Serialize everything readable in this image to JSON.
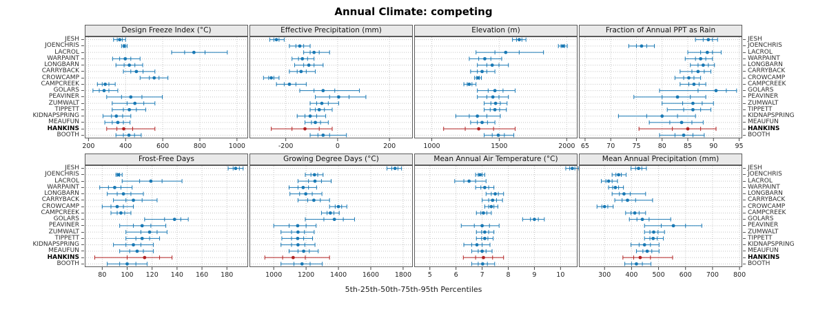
{
  "title": "Annual Climate: competing",
  "caption": "5th-25th-50th-75th-95th Percentiles",
  "sites": [
    "JESH",
    "JOENCHRIS",
    "LACROL",
    "WARPAINT",
    "LONGBARN",
    "CARRYBACK",
    "CROWCAMP",
    "CAMPCREEK",
    "GOLARS",
    "PEAVINER",
    "ZUMWALT",
    "TIPPETT",
    "KIDNAPSPRING",
    "MEAUFUN",
    "HANKINS",
    "BOOTH"
  ],
  "highlight_site": "HANKINS",
  "percentiles": [
    "p5",
    "p25",
    "p50",
    "p75",
    "p95"
  ],
  "colors": {
    "normal": "#1878b4",
    "highlight": "#b22222",
    "grid": "#c3c3c3",
    "strip_bg": "#e9e9e9",
    "border": "#5a5a5a"
  },
  "chart_data": [
    {
      "type": "dotplot-interval",
      "title": "Design Freeze Index (°C)",
      "xlim": [
        180,
        1060
      ],
      "xticks": [
        200,
        400,
        600,
        800,
        1000
      ],
      "values": [
        [
          335,
          355,
          368,
          382,
          400
        ],
        [
          378,
          388,
          393,
          398,
          408
        ],
        [
          648,
          718,
          768,
          828,
          948
        ],
        [
          330,
          368,
          398,
          428,
          478
        ],
        [
          348,
          392,
          420,
          450,
          492
        ],
        [
          388,
          428,
          458,
          494,
          558
        ],
        [
          478,
          528,
          554,
          580,
          628
        ],
        [
          248,
          274,
          290,
          310,
          344
        ],
        [
          224,
          258,
          284,
          310,
          358
        ],
        [
          298,
          378,
          428,
          488,
          598
        ],
        [
          328,
          408,
          450,
          498,
          558
        ],
        [
          328,
          388,
          420,
          458,
          508
        ],
        [
          278,
          324,
          350,
          384,
          428
        ],
        [
          288,
          328,
          358,
          388,
          424
        ],
        [
          298,
          353,
          390,
          438,
          558
        ],
        [
          348,
          388,
          418,
          448,
          484
        ]
      ]
    },
    {
      "type": "dotplot-interval",
      "title": "Effective Precipitation (mm)",
      "xlim": [
        -340,
        290
      ],
      "xticks": [
        -200,
        0,
        200
      ],
      "values": [
        [
          -262,
          -246,
          -236,
          -226,
          -206
        ],
        [
          -186,
          -161,
          -146,
          -131,
          -106
        ],
        [
          -131,
          -106,
          -91,
          -71,
          -31
        ],
        [
          -176,
          -151,
          -136,
          -116,
          -91
        ],
        [
          -166,
          -131,
          -111,
          -91,
          -56
        ],
        [
          -186,
          -156,
          -141,
          -121,
          -86
        ],
        [
          -286,
          -266,
          -256,
          -246,
          -226
        ],
        [
          -236,
          -206,
          -186,
          -161,
          -121
        ],
        [
          -146,
          -91,
          -56,
          -11,
          84
        ],
        [
          -86,
          -31,
          4,
          44,
          109
        ],
        [
          -106,
          -81,
          -61,
          -36,
          4
        ],
        [
          -106,
          -86,
          -71,
          -51,
          -21
        ],
        [
          -156,
          -126,
          -106,
          -81,
          -46
        ],
        [
          -126,
          -101,
          -86,
          -66,
          -36
        ],
        [
          -256,
          -176,
          -126,
          -71,
          -21
        ],
        [
          -106,
          -76,
          -56,
          -31,
          34
        ]
      ]
    },
    {
      "type": "dotplot-interval",
      "title": "Elevation (m)",
      "xlim": [
        870,
        2080
      ],
      "xticks": [
        1000,
        1500,
        2000
      ],
      "values": [
        [
          1598,
          1628,
          1648,
          1668,
          1698
        ],
        [
          1938,
          1958,
          1972,
          1984,
          2004
        ],
        [
          1328,
          1468,
          1548,
          1648,
          1828
        ],
        [
          1278,
          1348,
          1393,
          1438,
          1518
        ],
        [
          1338,
          1408,
          1448,
          1498,
          1568
        ],
        [
          1288,
          1338,
          1373,
          1408,
          1468
        ],
        [
          1318,
          1333,
          1343,
          1353,
          1368
        ],
        [
          1238,
          1263,
          1278,
          1298,
          1328
        ],
        [
          1338,
          1418,
          1468,
          1528,
          1618
        ],
        [
          1338,
          1408,
          1453,
          1498,
          1568
        ],
        [
          1388,
          1438,
          1473,
          1508,
          1558
        ],
        [
          1388,
          1433,
          1468,
          1503,
          1553
        ],
        [
          1178,
          1278,
          1338,
          1408,
          1508
        ],
        [
          1288,
          1338,
          1373,
          1413,
          1468
        ],
        [
          1088,
          1248,
          1348,
          1458,
          1618
        ],
        [
          1388,
          1448,
          1493,
          1538,
          1608
        ]
      ]
    },
    {
      "type": "dotplot-interval",
      "title": "Fraction of Annual PPT as Rain",
      "xlim": [
        63.8,
        95.6
      ],
      "xticks": [
        65,
        70,
        75,
        80,
        85,
        90,
        95
      ],
      "values": [
        [
          86.5,
          88.0,
          89.0,
          89.8,
          90.8
        ],
        [
          73.5,
          75.0,
          76.0,
          77.0,
          78.5
        ],
        [
          85.0,
          87.5,
          88.8,
          89.8,
          91.5
        ],
        [
          84.5,
          86.5,
          87.5,
          88.5,
          89.8
        ],
        [
          85.5,
          87.0,
          88.0,
          89.0,
          90.2
        ],
        [
          83.5,
          85.8,
          87.0,
          88.2,
          89.5
        ],
        [
          82.5,
          84.2,
          85.2,
          86.2,
          87.5
        ],
        [
          83.5,
          85.2,
          86.2,
          87.2,
          88.5
        ],
        [
          79.5,
          87.0,
          90.5,
          92.5,
          94.5
        ],
        [
          74.5,
          80.0,
          83.0,
          85.5,
          88.5
        ],
        [
          80.0,
          84.0,
          86.0,
          87.8,
          90.0
        ],
        [
          81.0,
          84.2,
          86.0,
          87.5,
          89.5
        ],
        [
          71.5,
          77.0,
          80.0,
          83.0,
          86.5
        ],
        [
          77.5,
          81.5,
          83.8,
          85.8,
          88.0
        ],
        [
          75.5,
          82.0,
          85.0,
          87.5,
          90.5
        ],
        [
          79.5,
          82.5,
          84.2,
          86.0,
          88.2
        ]
      ]
    },
    {
      "type": "dotplot-interval",
      "title": "Frost-Free Days",
      "xlim": [
        66,
        197
      ],
      "xticks": [
        80,
        100,
        120,
        140,
        160,
        180
      ],
      "values": [
        [
          181,
          185,
          187,
          190,
          193
        ],
        [
          91,
          92,
          93,
          94,
          96
        ],
        [
          96,
          110,
          119,
          128,
          144
        ],
        [
          78,
          85,
          90,
          95,
          104
        ],
        [
          84,
          92,
          97,
          103,
          113
        ],
        [
          89,
          99,
          105,
          112,
          124
        ],
        [
          80,
          87,
          92,
          97,
          105
        ],
        [
          87,
          92,
          95,
          98,
          103
        ],
        [
          114,
          130,
          138,
          143,
          149
        ],
        [
          94,
          105,
          112,
          119,
          131
        ],
        [
          99,
          111,
          118,
          124,
          132
        ],
        [
          99,
          107,
          112,
          118,
          126
        ],
        [
          89,
          99,
          105,
          111,
          121
        ],
        [
          94,
          102,
          108,
          113,
          121
        ],
        [
          74,
          100,
          114,
          126,
          136
        ],
        [
          84,
          94,
          100,
          107,
          116
        ]
      ]
    },
    {
      "type": "dotplot-interval",
      "title": "Growing Degree Days (°C)",
      "xlim": [
        850,
        1860
      ],
      "xticks": [
        1000,
        1200,
        1400,
        1600,
        1800
      ],
      "values": [
        [
          1700,
          1730,
          1750,
          1768,
          1790
        ],
        [
          1195,
          1230,
          1252,
          1272,
          1305
        ],
        [
          1150,
          1215,
          1255,
          1295,
          1355
        ],
        [
          1095,
          1150,
          1182,
          1215,
          1265
        ],
        [
          1100,
          1160,
          1198,
          1238,
          1298
        ],
        [
          1150,
          1210,
          1248,
          1288,
          1345
        ],
        [
          1345,
          1380,
          1400,
          1420,
          1452
        ],
        [
          1295,
          1330,
          1350,
          1372,
          1405
        ],
        [
          1195,
          1310,
          1375,
          1430,
          1500
        ],
        [
          1000,
          1095,
          1148,
          1200,
          1262
        ],
        [
          1045,
          1110,
          1150,
          1190,
          1250
        ],
        [
          1050,
          1110,
          1148,
          1185,
          1240
        ],
        [
          1045,
          1110,
          1150,
          1192,
          1255
        ],
        [
          1095,
          1150,
          1185,
          1220,
          1275
        ],
        [
          945,
          1055,
          1120,
          1195,
          1345
        ],
        [
          1045,
          1125,
          1175,
          1225,
          1300
        ]
      ]
    },
    {
      "type": "dotplot-interval",
      "title": "Mean Annual Air Temperature (°C)",
      "xlim": [
        4.4,
        10.65
      ],
      "xticks": [
        5,
        6,
        7,
        8,
        9,
        10
      ],
      "values": [
        [
          10.2,
          10.35,
          10.45,
          10.55,
          10.7
        ],
        [
          6.75,
          6.85,
          6.92,
          7.0,
          7.1
        ],
        [
          5.95,
          6.3,
          6.5,
          6.75,
          7.15
        ],
        [
          6.75,
          6.95,
          7.1,
          7.25,
          7.45
        ],
        [
          7.15,
          7.35,
          7.5,
          7.62,
          7.82
        ],
        [
          7.0,
          7.25,
          7.4,
          7.55,
          7.78
        ],
        [
          7.1,
          7.25,
          7.35,
          7.45,
          7.6
        ],
        [
          6.78,
          6.95,
          7.05,
          7.18,
          7.35
        ],
        [
          8.55,
          8.85,
          9.0,
          9.15,
          9.38
        ],
        [
          6.2,
          6.7,
          7.0,
          7.28,
          7.65
        ],
        [
          6.78,
          6.98,
          7.1,
          7.25,
          7.45
        ],
        [
          6.78,
          6.98,
          7.1,
          7.22,
          7.42
        ],
        [
          6.3,
          6.6,
          6.8,
          7.0,
          7.3
        ],
        [
          6.6,
          6.85,
          7.0,
          7.15,
          7.38
        ],
        [
          6.28,
          6.75,
          7.05,
          7.4,
          7.82
        ],
        [
          6.6,
          6.85,
          7.02,
          7.2,
          7.48
        ]
      ]
    },
    {
      "type": "dotplot-interval",
      "title": "Mean Annual Precipitation (mm)",
      "xlim": [
        205,
        810
      ],
      "xticks": [
        300,
        400,
        500,
        600,
        700,
        800
      ],
      "values": [
        [
          398,
          415,
          426,
          438,
          455
        ],
        [
          328,
          342,
          352,
          362,
          380
        ],
        [
          288,
          305,
          315,
          328,
          348
        ],
        [
          315,
          330,
          340,
          352,
          370
        ],
        [
          328,
          355,
          372,
          395,
          452
        ],
        [
          338,
          365,
          385,
          415,
          478
        ],
        [
          272,
          290,
          300,
          312,
          332
        ],
        [
          378,
          398,
          412,
          428,
          452
        ],
        [
          392,
          420,
          440,
          465,
          545
        ],
        [
          448,
          510,
          555,
          600,
          660
        ],
        [
          448,
          468,
          482,
          498,
          522
        ],
        [
          448,
          468,
          480,
          495,
          518
        ],
        [
          398,
          428,
          448,
          470,
          502
        ],
        [
          418,
          442,
          458,
          475,
          502
        ],
        [
          368,
          408,
          432,
          470,
          552
        ],
        [
          375,
          400,
          418,
          440,
          472
        ]
      ]
    }
  ]
}
